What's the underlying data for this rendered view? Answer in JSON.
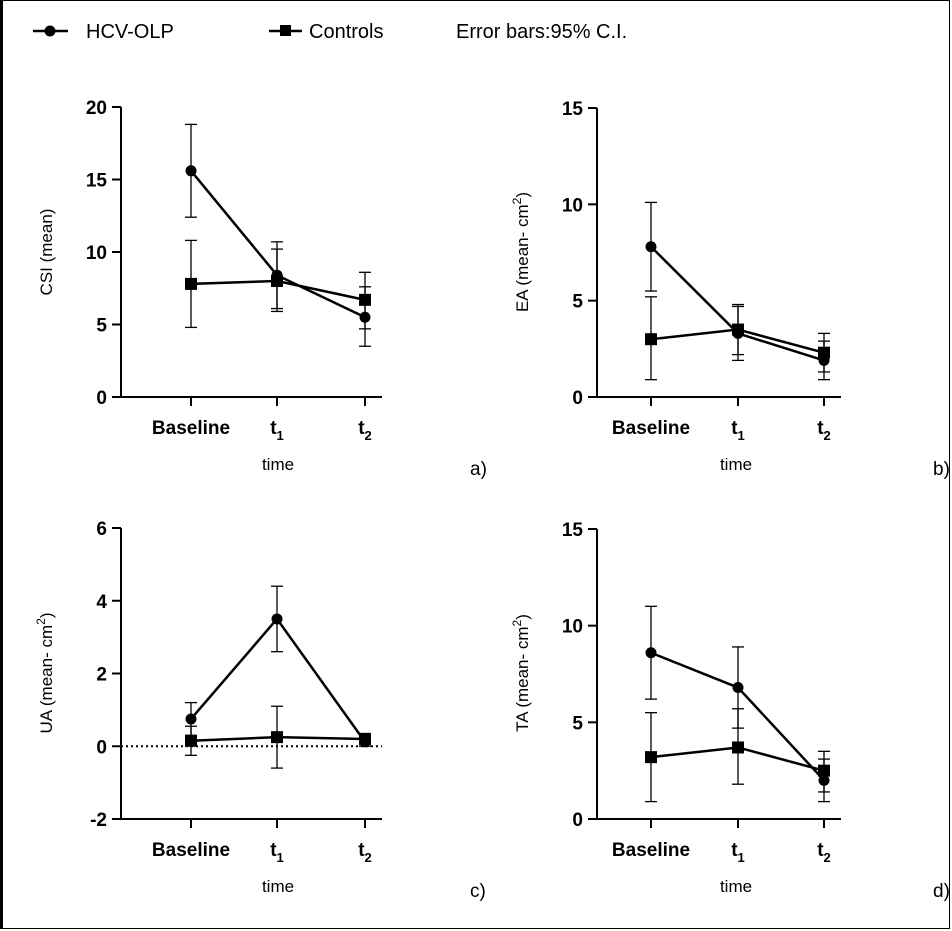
{
  "legend": {
    "series_a": "HCV-OLP",
    "series_b": "Controls",
    "note": "Error bars:95% C.I."
  },
  "chart_data": [
    {
      "type": "line",
      "panel_label": "a)",
      "ylabel": "CSI (mean)",
      "ylabel_sup": "",
      "xlabel": "time",
      "categories": [
        "Baseline",
        "t1",
        "t2"
      ],
      "ylim": [
        0,
        20
      ],
      "yticks": [
        0,
        5,
        10,
        15,
        20
      ],
      "zero_line": false,
      "series": [
        {
          "name": "HCV-OLP",
          "marker": "circle",
          "values": [
            15.6,
            8.4,
            5.5
          ],
          "ci_low": [
            12.4,
            6.1,
            3.5
          ],
          "ci_high": [
            18.8,
            10.7,
            7.6
          ]
        },
        {
          "name": "Controls",
          "marker": "square",
          "values": [
            7.8,
            8.0,
            6.7
          ],
          "ci_low": [
            4.8,
            5.9,
            4.7
          ],
          "ci_high": [
            10.8,
            10.2,
            8.6
          ]
        }
      ]
    },
    {
      "type": "line",
      "panel_label": "b)",
      "ylabel": "EA (mean- cm",
      "ylabel_sup": "2",
      "xlabel": "time",
      "categories": [
        "Baseline",
        "t1",
        "t2"
      ],
      "ylim": [
        0,
        15
      ],
      "yticks": [
        0,
        5,
        10,
        15
      ],
      "zero_line": false,
      "series": [
        {
          "name": "HCV-OLP",
          "marker": "circle",
          "values": [
            7.8,
            3.3,
            1.9
          ],
          "ci_low": [
            5.5,
            1.9,
            0.9
          ],
          "ci_high": [
            10.1,
            4.7,
            2.9
          ]
        },
        {
          "name": "Controls",
          "marker": "square",
          "values": [
            3.0,
            3.5,
            2.3
          ],
          "ci_low": [
            0.9,
            2.2,
            1.3
          ],
          "ci_high": [
            5.2,
            4.8,
            3.3
          ]
        }
      ]
    },
    {
      "type": "line",
      "panel_label": "c)",
      "ylabel": "UA (mean- cm",
      "ylabel_sup": "2",
      "xlabel": "time",
      "categories": [
        "Baseline",
        "t1",
        "t2"
      ],
      "ylim": [
        -2,
        6
      ],
      "yticks": [
        -2,
        0,
        2,
        4,
        6
      ],
      "zero_line": true,
      "series": [
        {
          "name": "HCV-OLP",
          "marker": "circle",
          "values": [
            0.75,
            3.5,
            0.12
          ],
          "ci_low": [
            0.3,
            2.6,
            0.0
          ],
          "ci_high": [
            1.2,
            4.4,
            0.25
          ]
        },
        {
          "name": "Controls",
          "marker": "square",
          "values": [
            0.15,
            0.25,
            0.2
          ],
          "ci_low": [
            -0.25,
            -0.6,
            0.05
          ],
          "ci_high": [
            0.55,
            1.1,
            0.35
          ]
        }
      ]
    },
    {
      "type": "line",
      "panel_label": "d)",
      "ylabel": "TA (mean- cm",
      "ylabel_sup": "2",
      "xlabel": "time",
      "categories": [
        "Baseline",
        "t1",
        "t2"
      ],
      "ylim": [
        0,
        15
      ],
      "yticks": [
        0,
        5,
        10,
        15
      ],
      "zero_line": false,
      "series": [
        {
          "name": "HCV-OLP",
          "marker": "circle",
          "values": [
            8.6,
            6.8,
            2.0
          ],
          "ci_low": [
            6.2,
            4.7,
            0.9
          ],
          "ci_high": [
            11.0,
            8.9,
            3.1
          ]
        },
        {
          "name": "Controls",
          "marker": "square",
          "values": [
            3.2,
            3.7,
            2.5
          ],
          "ci_low": [
            0.9,
            1.8,
            1.4
          ],
          "ci_high": [
            5.5,
            5.7,
            3.5
          ]
        }
      ]
    }
  ]
}
